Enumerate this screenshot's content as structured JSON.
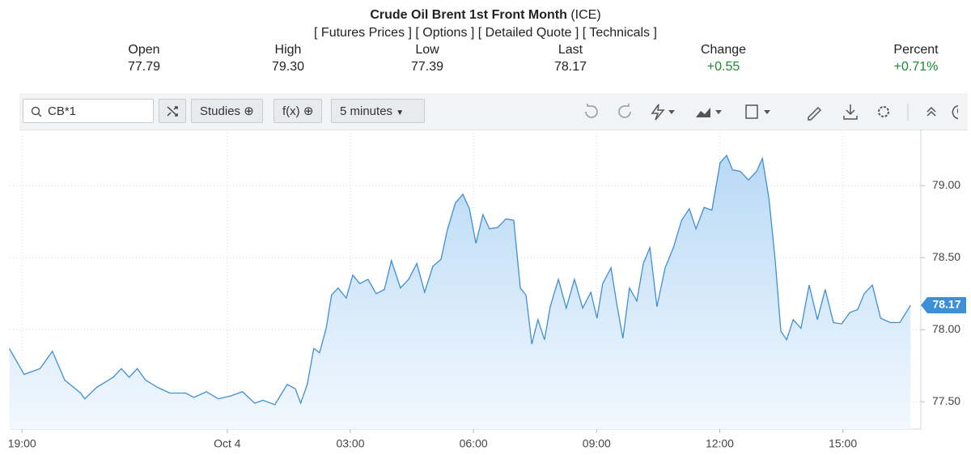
{
  "header": {
    "title": "Crude Oil Brent 1st Front Month",
    "exchange": "(ICE)",
    "links": [
      "[ Futures Prices ]",
      "[ Options ]",
      "[ Detailed Quote ]",
      "[ Technicals ]"
    ],
    "quotes": [
      {
        "label": "Open",
        "value": "77.79"
      },
      {
        "label": "High",
        "value": "79.30"
      },
      {
        "label": "Low",
        "value": "77.39"
      },
      {
        "label": "Last",
        "value": "78.17"
      },
      {
        "label": "Change",
        "value": "+0.55"
      },
      {
        "label": "Percent",
        "value": "+0.71%"
      }
    ]
  },
  "toolbar": {
    "symbol": "CB*1",
    "studies": "Studies",
    "function": "f(x)",
    "interval": "5 minutes"
  },
  "chart_data": {
    "type": "line",
    "color": "#3d8fd8",
    "grid": true,
    "last_label": "78.17",
    "x": [
      -5.31,
      -4.95,
      -4.56,
      -4.26,
      -3.96,
      -3.57,
      -3.47,
      -3.18,
      -2.78,
      -2.58,
      -2.39,
      -2.19,
      -1.99,
      -1.7,
      -1.4,
      -1.01,
      -0.81,
      -0.51,
      -0.22,
      0.08,
      0.37,
      0.67,
      0.87,
      1.16,
      1.46,
      1.66,
      1.79,
      1.95,
      2.11,
      2.25,
      2.41,
      2.54,
      2.7,
      2.9,
      3.06,
      3.23,
      3.43,
      3.63,
      3.83,
      4.0,
      4.22,
      4.42,
      4.62,
      4.81,
      5.01,
      5.21,
      5.36,
      5.56,
      5.74,
      5.9,
      6.06,
      6.23,
      6.39,
      6.59,
      6.79,
      6.98,
      7.14,
      7.28,
      7.42,
      7.57,
      7.73,
      7.87,
      8.07,
      8.26,
      8.46,
      8.66,
      8.86,
      9.01,
      9.15,
      9.35,
      9.49,
      9.64,
      9.8,
      9.98,
      10.14,
      10.3,
      10.47,
      10.67,
      10.87,
      11.07,
      11.26,
      11.42,
      11.62,
      11.81,
      12.01,
      12.17,
      12.31,
      12.5,
      12.7,
      12.9,
      13.04,
      13.2,
      13.35,
      13.49,
      13.63,
      13.79,
      13.98,
      14.18,
      14.38,
      14.57,
      14.77,
      14.97,
      15.17,
      15.36,
      15.52,
      15.72,
      15.92,
      16.15,
      16.39,
      16.65
    ],
    "values": [
      77.87,
      77.69,
      77.73,
      77.85,
      77.65,
      77.56,
      77.52,
      77.6,
      77.67,
      77.73,
      77.67,
      77.73,
      77.65,
      77.6,
      77.56,
      77.56,
      77.53,
      77.57,
      77.52,
      77.54,
      77.57,
      77.49,
      77.51,
      77.48,
      77.62,
      77.59,
      77.49,
      77.62,
      77.87,
      77.84,
      78.01,
      78.24,
      78.29,
      78.22,
      78.38,
      78.32,
      78.35,
      78.25,
      78.28,
      78.48,
      78.29,
      78.35,
      78.46,
      78.26,
      78.44,
      78.49,
      78.69,
      78.88,
      78.94,
      78.84,
      78.6,
      78.8,
      78.7,
      78.71,
      78.77,
      78.76,
      78.29,
      78.24,
      77.9,
      78.07,
      77.93,
      78.16,
      78.35,
      78.15,
      78.35,
      78.15,
      78.26,
      78.08,
      78.32,
      78.43,
      78.18,
      77.94,
      78.29,
      78.2,
      78.46,
      78.57,
      78.16,
      78.43,
      78.57,
      78.76,
      78.84,
      78.7,
      78.85,
      78.83,
      79.16,
      79.21,
      79.11,
      79.1,
      79.04,
      79.1,
      79.19,
      78.91,
      78.49,
      77.99,
      77.93,
      78.07,
      78.01,
      78.31,
      78.07,
      78.28,
      78.05,
      78.04,
      78.12,
      78.14,
      78.25,
      78.31,
      78.08,
      78.05,
      78.05,
      78.17
    ],
    "xlim": [
      -5.3,
      16.9
    ],
    "ylim": [
      77.31,
      79.39
    ],
    "xticks": [
      {
        "value": -5,
        "label": "19:00"
      },
      {
        "value": 0,
        "label": "Oct 4"
      },
      {
        "value": 3,
        "label": "03:00"
      },
      {
        "value": 6,
        "label": "06:00"
      },
      {
        "value": 9,
        "label": "09:00"
      },
      {
        "value": 12,
        "label": "12:00"
      },
      {
        "value": 15,
        "label": "15:00"
      }
    ],
    "yticks": [
      {
        "value": 77.5,
        "label": "77.50"
      },
      {
        "value": 78,
        "label": "78.00"
      },
      {
        "value": 78.5,
        "label": "78.50"
      },
      {
        "value": 79,
        "label": "79.00"
      }
    ]
  }
}
